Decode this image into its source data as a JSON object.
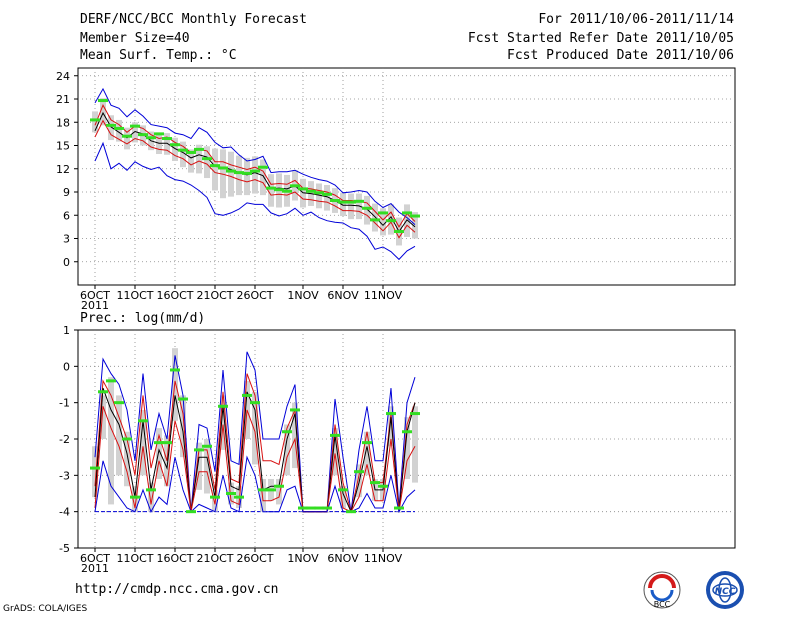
{
  "header": {
    "title": "DERF/NCC/BCC Monthly Forecast",
    "member_size": "Member Size=40",
    "variable1": "Mean Surf. Temp.: °C",
    "period": "For 2011/10/06-2011/11/14",
    "started": "Fcst Started Refer Date 2011/10/05",
    "produced": "Fcst Produced Date 2011/10/06"
  },
  "footer": {
    "url": "http://cmdp.ncc.cma.gov.cn",
    "grads": "GrADS: COLA/IGES",
    "logo_left": "BCC",
    "logo_right": "NCC"
  },
  "colors": {
    "mean": "#000000",
    "spread": "#d81010",
    "envelope": "#0000d8",
    "box": "#d2d2d2",
    "median": "#33dd22",
    "grid": "#888888"
  },
  "chart_data": [
    {
      "type": "line",
      "title": "Mean Surf. Temp.: °C",
      "xlabel": "",
      "ylabel": "",
      "ylim": [
        -3,
        25
      ],
      "yticks": [
        0,
        3,
        6,
        9,
        12,
        15,
        18,
        21,
        24
      ],
      "x_ticks": [
        {
          "day": 0,
          "label": "6OCT",
          "sub": "2011"
        },
        {
          "day": 5,
          "label": "11OCT"
        },
        {
          "day": 10,
          "label": "16OCT"
        },
        {
          "day": 15,
          "label": "21OCT"
        },
        {
          "day": 20,
          "label": "26OCT"
        },
        {
          "day": 26,
          "label": "1NOV"
        },
        {
          "day": 31,
          "label": "6NOV"
        },
        {
          "day": 36,
          "label": "11NOV"
        }
      ],
      "series": [
        {
          "name": "max",
          "values": [
            20.5,
            22.3,
            20.2,
            19.8,
            18.7,
            19.6,
            18.8,
            17.7,
            17.5,
            17.3,
            16.6,
            16.4,
            15.9,
            17.3,
            16.7,
            15.4,
            14.7,
            14.8,
            13.8,
            13.0,
            13.2,
            13.6,
            11.5,
            11.6,
            11.6,
            11.8,
            11.3,
            10.9,
            10.6,
            10.4,
            9.9,
            8.9,
            9.0,
            9.2,
            9.0,
            7.8,
            7.0,
            7.5,
            6.4,
            5.7,
            4.8
          ]
        },
        {
          "name": "upper",
          "values": [
            17.6,
            20.2,
            18.3,
            17.7,
            16.7,
            17.5,
            17.2,
            16.4,
            15.9,
            16.1,
            15.4,
            14.9,
            14.1,
            14.5,
            14.3,
            12.9,
            12.9,
            12.5,
            12.2,
            11.9,
            12.2,
            11.7,
            10.0,
            10.1,
            10.0,
            10.5,
            9.5,
            9.4,
            9.2,
            9.0,
            8.6,
            7.9,
            7.9,
            7.8,
            7.6,
            6.5,
            5.4,
            6.4,
            4.5,
            6.2,
            5.2
          ]
        },
        {
          "name": "mean",
          "values": [
            16.9,
            19.2,
            17.4,
            16.7,
            16.0,
            16.8,
            16.5,
            15.6,
            15.3,
            15.3,
            14.6,
            14.1,
            13.4,
            13.8,
            13.5,
            12.3,
            12.2,
            11.9,
            11.5,
            11.2,
            11.5,
            11.1,
            9.4,
            9.5,
            9.4,
            9.8,
            8.9,
            8.8,
            8.6,
            8.4,
            7.9,
            7.3,
            7.3,
            7.2,
            6.8,
            5.8,
            4.7,
            5.8,
            3.9,
            5.4,
            4.5
          ]
        },
        {
          "name": "lower",
          "values": [
            16.1,
            18.2,
            16.4,
            15.8,
            15.2,
            15.9,
            15.6,
            14.8,
            14.5,
            14.4,
            13.7,
            13.3,
            12.5,
            13.0,
            12.6,
            11.5,
            11.3,
            11.0,
            10.6,
            10.3,
            10.6,
            10.2,
            8.6,
            8.7,
            8.6,
            9.0,
            8.1,
            8.0,
            7.8,
            7.7,
            7.2,
            6.6,
            6.6,
            6.5,
            6.0,
            5.0,
            4.0,
            5.1,
            3.1,
            4.7,
            3.8
          ]
        },
        {
          "name": "min",
          "values": [
            13.0,
            15.3,
            12.0,
            12.7,
            11.8,
            12.9,
            12.3,
            11.9,
            12.2,
            11.1,
            10.6,
            10.4,
            9.9,
            9.2,
            8.3,
            6.2,
            6.0,
            6.3,
            6.8,
            7.6,
            7.4,
            7.4,
            6.3,
            5.9,
            6.2,
            6.9,
            6.0,
            6.4,
            5.7,
            5.3,
            5.1,
            5.0,
            4.4,
            4.2,
            3.3,
            1.6,
            1.9,
            1.3,
            0.3,
            1.4,
            2.0
          ]
        }
      ],
      "boxes": {
        "high": [
          19.4,
          21.1,
          18.9,
          18.3,
          17.3,
          18.0,
          17.6,
          16.8,
          16.4,
          16.6,
          16.0,
          15.5,
          14.5,
          15.1,
          14.9,
          14.6,
          14.5,
          14.2,
          13.7,
          13.4,
          13.6,
          13.2,
          11.3,
          11.4,
          11.2,
          11.8,
          10.7,
          10.4,
          10.1,
          9.9,
          9.5,
          8.9,
          8.8,
          8.8,
          8.5,
          7.5,
          6.9,
          7.4,
          5.7,
          7.4,
          6.4
        ],
        "low": [
          16.7,
          17.6,
          15.7,
          15.5,
          14.5,
          15.4,
          15.0,
          14.4,
          13.9,
          13.8,
          13.0,
          12.2,
          11.5,
          11.4,
          10.8,
          9.2,
          8.2,
          8.4,
          8.6,
          8.6,
          8.8,
          8.6,
          7.1,
          7.0,
          7.1,
          7.9,
          7.0,
          7.2,
          6.9,
          6.6,
          6.3,
          5.9,
          5.5,
          5.5,
          4.8,
          3.9,
          3.4,
          3.5,
          2.1,
          3.2,
          3.0
        ],
        "median": [
          18.3,
          20.8,
          17.6,
          17.2,
          16.2,
          17.5,
          16.4,
          16.0,
          16.5,
          15.9,
          15.1,
          14.4,
          14.1,
          14.5,
          13.3,
          12.4,
          12.1,
          11.7,
          11.5,
          11.4,
          11.7,
          12.2,
          9.5,
          9.3,
          9.1,
          9.8,
          9.4,
          9.1,
          8.9,
          8.7,
          7.9,
          7.7,
          7.7,
          7.8,
          6.9,
          5.4,
          6.3,
          5.3,
          3.9,
          6.3,
          5.9
        ]
      }
    },
    {
      "type": "line",
      "title": "Prec.: log(mm/d)",
      "xlabel": "",
      "ylabel": "",
      "ylim": [
        -5,
        1
      ],
      "yticks": [
        -5,
        -4,
        -3,
        -2,
        -1,
        0,
        1
      ],
      "x_ticks": [
        {
          "day": 0,
          "label": "6OCT",
          "sub": "2011"
        },
        {
          "day": 5,
          "label": "11OCT"
        },
        {
          "day": 10,
          "label": "16OCT"
        },
        {
          "day": 15,
          "label": "21OCT"
        },
        {
          "day": 20,
          "label": "26OCT"
        },
        {
          "day": 26,
          "label": "1NOV"
        },
        {
          "day": 31,
          "label": "6NOV"
        },
        {
          "day": 36,
          "label": "11NOV"
        }
      ],
      "series": [
        {
          "name": "max",
          "values": [
            -2.5,
            0.2,
            -0.2,
            -0.5,
            -1.2,
            -2.6,
            -0.2,
            -2.3,
            -1.3,
            -2.0,
            0.3,
            -0.8,
            -4.0,
            -1.6,
            -1.7,
            -2.9,
            -0.1,
            -2.6,
            -2.7,
            0.4,
            -0.1,
            -2.0,
            -2.0,
            -2.0,
            -1.1,
            -0.5,
            -4.0,
            -4.0,
            -4.0,
            -4.0,
            -0.9,
            -2.5,
            -4.0,
            -2.3,
            -1.1,
            -2.6,
            -2.6,
            -0.6,
            -3.9,
            -1.0,
            -0.3
          ]
        },
        {
          "name": "upper",
          "values": [
            -3.3,
            -0.4,
            -0.8,
            -1.4,
            -2.0,
            -3.0,
            -0.8,
            -2.8,
            -1.9,
            -2.6,
            -0.4,
            -1.3,
            -4.0,
            -2.3,
            -2.3,
            -3.4,
            -0.7,
            -3.1,
            -3.2,
            -0.2,
            -0.8,
            -2.6,
            -2.6,
            -2.7,
            -1.7,
            -1.2,
            -4.0,
            -4.0,
            -4.0,
            -4.0,
            -1.6,
            -3.2,
            -4.0,
            -3.0,
            -1.8,
            -3.2,
            -3.2,
            -1.3,
            -4.0,
            -1.6,
            -1.0
          ]
        },
        {
          "name": "mean",
          "values": [
            -3.6,
            -0.6,
            -1.2,
            -1.6,
            -2.4,
            -3.6,
            -1.5,
            -3.4,
            -2.3,
            -2.8,
            -0.8,
            -1.8,
            -4.0,
            -2.5,
            -2.5,
            -3.6,
            -1.1,
            -3.3,
            -3.4,
            -0.7,
            -1.2,
            -3.4,
            -3.3,
            -3.3,
            -2.0,
            -1.3,
            -4.0,
            -4.0,
            -4.0,
            -4.0,
            -1.9,
            -3.5,
            -4.0,
            -3.2,
            -2.2,
            -3.4,
            -3.4,
            -1.4,
            -4.0,
            -1.8,
            -1.0
          ]
        },
        {
          "name": "lower",
          "values": [
            -3.9,
            -1.1,
            -1.7,
            -2.2,
            -2.9,
            -3.9,
            -2.2,
            -3.8,
            -2.6,
            -3.3,
            -1.5,
            -2.3,
            -4.0,
            -2.9,
            -2.9,
            -3.8,
            -1.6,
            -3.7,
            -3.8,
            -1.2,
            -1.8,
            -3.7,
            -3.7,
            -3.6,
            -2.5,
            -2.0,
            -4.0,
            -4.0,
            -4.0,
            -4.0,
            -2.4,
            -3.9,
            -4.0,
            -3.6,
            -2.7,
            -3.7,
            -3.7,
            -2.0,
            -4.0,
            -2.6,
            -2.2
          ]
        },
        {
          "name": "min",
          "values": [
            -4.0,
            -2.6,
            -3.3,
            -3.6,
            -3.9,
            -4.0,
            -3.4,
            -4.0,
            -3.6,
            -3.8,
            -2.5,
            -3.4,
            -4.0,
            -3.8,
            -3.9,
            -4.0,
            -3.0,
            -3.9,
            -4.0,
            -2.5,
            -3.0,
            -4.0,
            -4.0,
            -4.0,
            -3.4,
            -3.3,
            -4.0,
            -4.0,
            -4.0,
            -4.0,
            -3.3,
            -4.0,
            -4.0,
            -3.9,
            -3.5,
            -3.9,
            -3.9,
            -3.0,
            -4.0,
            -3.6,
            -3.4
          ]
        }
      ],
      "boxes": {
        "high": [
          -2.2,
          -0.8,
          -0.3,
          -0.8,
          -1.8,
          -3.3,
          -1.2,
          -3.2,
          -1.7,
          -1.9,
          0.5,
          -0.8,
          -4.0,
          -2.1,
          -2.0,
          -3.4,
          -0.8,
          -3.2,
          -3.3,
          -0.4,
          -0.7,
          -3.1,
          -3.1,
          -3.1,
          -1.6,
          -1.0,
          -4.0,
          -4.0,
          -4.0,
          -4.0,
          -1.7,
          -3.3,
          -4.0,
          -2.7,
          -1.8,
          -3.1,
          -3.1,
          -1.1,
          -4.0,
          -1.4,
          -1.1
        ],
        "low": [
          -3.6,
          -2.0,
          -3.8,
          -3.0,
          -3.3,
          -4.0,
          -3.0,
          -4.0,
          -3.1,
          -3.3,
          -1.5,
          -2.5,
          -4.0,
          -3.4,
          -3.5,
          -4.0,
          -2.3,
          -3.8,
          -3.9,
          -2.0,
          -2.7,
          -4.0,
          -3.7,
          -3.8,
          -3.0,
          -2.8,
          -4.0,
          -4.0,
          -4.0,
          -4.0,
          -3.0,
          -3.9,
          -4.0,
          -3.6,
          -3.0,
          -3.7,
          -3.7,
          -2.2,
          -4.0,
          -3.1,
          -3.2
        ],
        "median": [
          -2.8,
          -0.7,
          -0.4,
          -1.0,
          -2.0,
          -3.6,
          -1.5,
          -3.4,
          -2.1,
          -2.1,
          -0.1,
          -0.9,
          -4.0,
          -2.3,
          -2.2,
          -3.6,
          -1.1,
          -3.5,
          -3.6,
          -0.8,
          -1.0,
          -3.4,
          -3.4,
          -3.3,
          -1.8,
          -1.2,
          -3.9,
          -3.9,
          -3.9,
          -3.9,
          -1.9,
          -3.4,
          -4.0,
          -2.9,
          -2.1,
          -3.2,
          -3.3,
          -1.3,
          -3.9,
          -1.8,
          -1.3
        ]
      }
    }
  ]
}
